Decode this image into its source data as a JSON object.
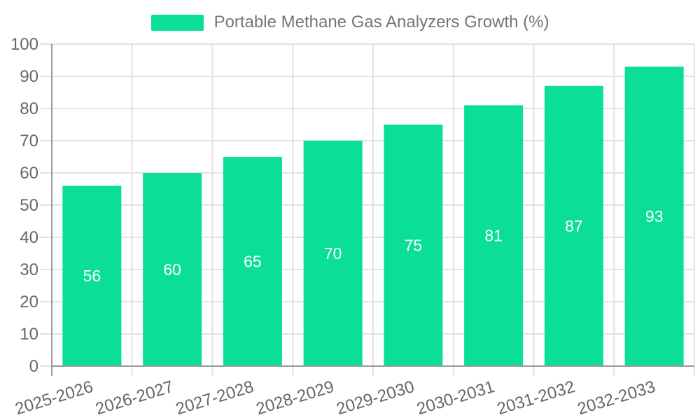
{
  "chart_data": {
    "type": "bar",
    "title": "Portable Methane Gas Analyzers Growth (%)",
    "categories": [
      "2025-2026",
      "2026-2027",
      "2027-2028",
      "2028-2029",
      "2029-2030",
      "2030-2031",
      "2031-2032",
      "2032-2033"
    ],
    "values": [
      56,
      60,
      65,
      70,
      75,
      81,
      87,
      93
    ],
    "yticks": [
      0,
      10,
      20,
      30,
      40,
      50,
      60,
      70,
      80,
      90,
      100
    ],
    "ylim": [
      0,
      100
    ],
    "xlabel": "",
    "ylabel": "",
    "grid": true,
    "legend_position": "top",
    "x_tick_rotation_deg": -17,
    "colors": {
      "bar": "#0bdf97",
      "bar_value_label": "#ffffff",
      "axis_line": "#9a9a9a",
      "grid_line": "#e2e2e2",
      "tick_label": "#666666",
      "legend_text": "#757575",
      "background": "#ffffff"
    }
  }
}
